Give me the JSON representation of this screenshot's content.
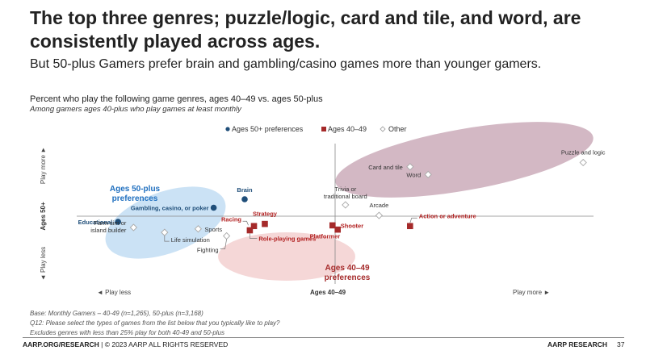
{
  "slide": {
    "title": "The top three genres; puzzle/logic, card and tile, and word, are consistently played across ages.",
    "subtitle": "But 50-plus Gamers prefer brain and gambling/casino games more than younger gamers.",
    "notes": [
      "Base: Monthly Gamers – 40-49 (n=1,265), 50-plus (n=3,168)",
      "Q12: Please select the types of games from the list below that you typically like to play?",
      "Excludes genres with less than 25% play for both 40-49 and 50-plus"
    ],
    "footer_left_bold": "AARP.ORG/RESEARCH",
    "footer_left_rest": " | © 2023 AARP ALL RIGHTS RESERVED",
    "footer_right": "AARP RESEARCH",
    "page_number": "37"
  },
  "chart_data": {
    "type": "scatter",
    "title": "Percent who play the following game genres, ages 40–49 vs. ages 50-plus",
    "subtitle": "Among gamers ages 40-plus who play games at least monthly",
    "xlabel": "Ages 40–49",
    "ylabel": "Ages 50+",
    "x_left_label": "◄ Play less",
    "x_right_label": "Play more ►",
    "y_top_label": "Play more ►",
    "y_bottom_label": "◄ Play less",
    "xlim": [
      0,
      100
    ],
    "ylim": [
      0,
      100
    ],
    "x_mid": 50,
    "y_mid": 44,
    "legend": [
      {
        "label": "Ages 50+ preferences",
        "marker": "circle",
        "color": "#1f4e79"
      },
      {
        "label": "Ages 40–49",
        "marker": "square",
        "color": "#a52a2a"
      },
      {
        "label": "Other",
        "marker": "diamond",
        "color": "#bbbbbb"
      }
    ],
    "clusters": [
      {
        "label_lines": [
          "Ages 50-plus",
          "preferences"
        ],
        "color": "#1f6fbf"
      },
      {
        "label_lines": [
          "Ages 40–49",
          "preferences"
        ],
        "color": "#a52a2a"
      }
    ],
    "series": [
      {
        "name": "Ages 50+ preferences",
        "color": "#1f4e79",
        "label_color": "#1f4e79",
        "bold": true,
        "points": [
          {
            "label": "Brain",
            "x": 32.5,
            "y": 56
          },
          {
            "label": "Gambling, casino, or poker",
            "x": 26.5,
            "y": 50
          },
          {
            "label": "Educational",
            "x": 8,
            "y": 40
          }
        ]
      },
      {
        "name": "Ages 40–49",
        "color": "#a52a2a",
        "label_color": "#b22222",
        "bold": true,
        "points": [
          {
            "label": "Racing",
            "x": 34.3,
            "y": 37
          },
          {
            "label": "Strategy",
            "x": 36.4,
            "y": 38.5
          },
          {
            "label": "Shooter",
            "x": 49.5,
            "y": 37.5
          },
          {
            "label": "Platformer",
            "x": 50.5,
            "y": 34.5
          },
          {
            "label": "Role-playing games",
            "x": 33.5,
            "y": 34
          },
          {
            "label": "Action or adventure",
            "x": 64.5,
            "y": 37
          }
        ]
      },
      {
        "name": "Other",
        "color": "#bbbbbb",
        "label_color": "#333333",
        "bold": false,
        "points": [
          {
            "label": "Puzzle and logic",
            "x": 98,
            "y": 82
          },
          {
            "label": "Card and tile",
            "x": 64.5,
            "y": 79
          },
          {
            "label": "Word",
            "x": 68,
            "y": 73.5
          },
          {
            "label": "Trivia or traditional board",
            "x": 52,
            "y": 52
          },
          {
            "label": "Arcade",
            "x": 58.5,
            "y": 44.5
          },
          {
            "label": "Farm sim or island builder",
            "x": 11,
            "y": 36
          },
          {
            "label": "Life simulation",
            "x": 17,
            "y": 32.5
          },
          {
            "label": "Sports",
            "x": 23.5,
            "y": 35
          },
          {
            "label": "Fighting",
            "x": 29,
            "y": 30
          }
        ]
      }
    ]
  }
}
